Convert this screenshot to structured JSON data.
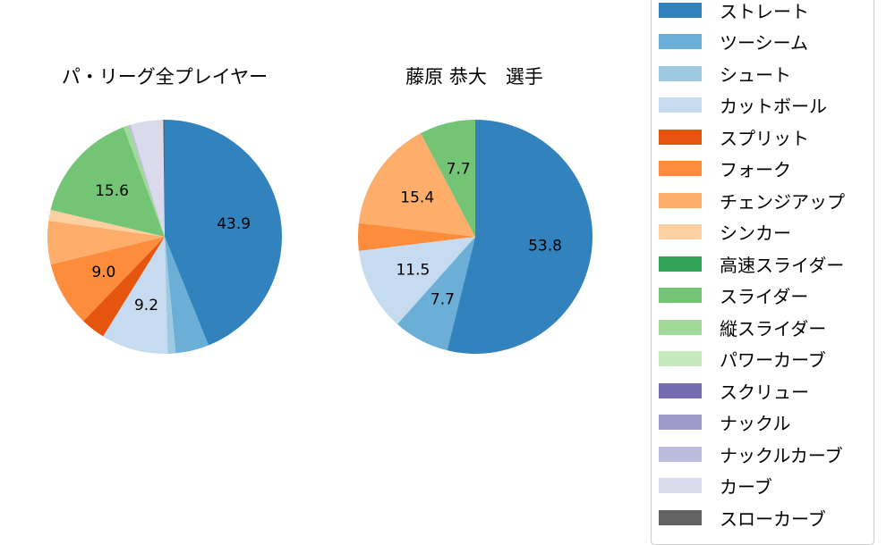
{
  "chart_data": [
    {
      "type": "pie",
      "title": "パ・リーグ全プレイヤー",
      "categories": [
        "ストレート",
        "ツーシーム",
        "シュート",
        "カットボール",
        "スプリット",
        "フォーク",
        "チェンジアップ",
        "シンカー",
        "スライダー",
        "縦スライダー",
        "ナックルカーブ",
        "カーブ",
        "スローカーブ"
      ],
      "values": [
        43.9,
        4.6,
        1.1,
        9.2,
        3.4,
        9.0,
        6.0,
        1.5,
        15.6,
        0.7,
        0.3,
        4.5,
        0.2
      ],
      "labels_shown": [
        "43.9",
        "9.2",
        "9.0",
        "15.6"
      ],
      "start_angle": 90,
      "direction": "clockwise"
    },
    {
      "type": "pie",
      "title": "藤原 恭大　選手",
      "categories": [
        "ストレート",
        "ツーシーム",
        "カットボール",
        "フォーク",
        "チェンジアップ",
        "スライダー"
      ],
      "values": [
        53.8,
        7.7,
        11.5,
        3.8,
        15.4,
        7.7
      ],
      "labels_shown": [
        "53.8",
        "7.7",
        "11.5",
        "15.4",
        "7.7"
      ],
      "start_angle": 90,
      "direction": "clockwise"
    }
  ],
  "titles": {
    "left": "パ・リーグ全プレイヤー",
    "right": "藤原 恭大　選手"
  },
  "legend": [
    {
      "label": "ストレート",
      "color": "#3182bd"
    },
    {
      "label": "ツーシーム",
      "color": "#6baed6"
    },
    {
      "label": "シュート",
      "color": "#9ecae1"
    },
    {
      "label": "カットボール",
      "color": "#c6dbef"
    },
    {
      "label": "スプリット",
      "color": "#e6550d"
    },
    {
      "label": "フォーク",
      "color": "#fd8d3c"
    },
    {
      "label": "チェンジアップ",
      "color": "#fdae6b"
    },
    {
      "label": "シンカー",
      "color": "#fdd0a2"
    },
    {
      "label": "高速スライダー",
      "color": "#31a354"
    },
    {
      "label": "スライダー",
      "color": "#74c476"
    },
    {
      "label": "縦スライダー",
      "color": "#a1d99b"
    },
    {
      "label": "パワーカーブ",
      "color": "#c7e9c0"
    },
    {
      "label": "スクリュー",
      "color": "#756bb1"
    },
    {
      "label": "ナックル",
      "color": "#9e9ac8"
    },
    {
      "label": "ナックルカーブ",
      "color": "#bcbddc"
    },
    {
      "label": "カーブ",
      "color": "#dadaeb"
    },
    {
      "label": "スローカーブ",
      "color": "#636363"
    }
  ]
}
